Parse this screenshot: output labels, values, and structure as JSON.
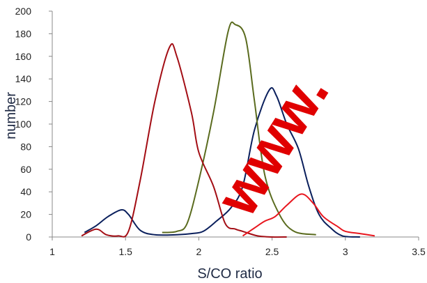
{
  "watermark_text": "www.",
  "chart_data": {
    "type": "line",
    "title": "",
    "xlabel": "S/CO ratio",
    "ylabel": "number",
    "xlim": [
      1,
      3.5
    ],
    "ylim": [
      0,
      200
    ],
    "xticks": [
      1,
      1.5,
      2,
      2.5,
      3,
      3.5
    ],
    "yticks": [
      0,
      20,
      40,
      60,
      80,
      100,
      120,
      140,
      160,
      180,
      200
    ],
    "grid": false,
    "legend": "none",
    "series": [
      {
        "color": "#0a1f5c",
        "points": [
          [
            1.22,
            4
          ],
          [
            1.3,
            10
          ],
          [
            1.38,
            18
          ],
          [
            1.47,
            24
          ],
          [
            1.52,
            20
          ],
          [
            1.6,
            6
          ],
          [
            1.7,
            2
          ],
          [
            1.85,
            2
          ],
          [
            1.95,
            3
          ],
          [
            2.03,
            5
          ],
          [
            2.12,
            14
          ],
          [
            2.22,
            26
          ],
          [
            2.3,
            45
          ],
          [
            2.38,
            95
          ],
          [
            2.48,
            130
          ],
          [
            2.53,
            125
          ],
          [
            2.6,
            100
          ],
          [
            2.68,
            78
          ],
          [
            2.75,
            45
          ],
          [
            2.82,
            20
          ],
          [
            2.9,
            8
          ],
          [
            2.98,
            1
          ],
          [
            3.1,
            0
          ]
        ]
      },
      {
        "color": "#5a6b1e",
        "points": [
          [
            1.75,
            4
          ],
          [
            1.85,
            5
          ],
          [
            1.92,
            12
          ],
          [
            2.0,
            50
          ],
          [
            2.1,
            110
          ],
          [
            2.2,
            182
          ],
          [
            2.25,
            188
          ],
          [
            2.32,
            176
          ],
          [
            2.38,
            120
          ],
          [
            2.45,
            55
          ],
          [
            2.55,
            20
          ],
          [
            2.65,
            5
          ],
          [
            2.8,
            2
          ]
        ]
      },
      {
        "color": "#a30d14",
        "points": [
          [
            1.2,
            1
          ],
          [
            1.3,
            7
          ],
          [
            1.37,
            2
          ],
          [
            1.45,
            1
          ],
          [
            1.52,
            5
          ],
          [
            1.6,
            50
          ],
          [
            1.7,
            120
          ],
          [
            1.8,
            168
          ],
          [
            1.85,
            160
          ],
          [
            1.95,
            110
          ],
          [
            2.0,
            75
          ],
          [
            2.1,
            45
          ],
          [
            2.18,
            12
          ],
          [
            2.25,
            7
          ],
          [
            2.3,
            5
          ],
          [
            2.4,
            1
          ],
          [
            2.5,
            0
          ],
          [
            2.6,
            0
          ]
        ]
      },
      {
        "color": "#e8161e",
        "points": [
          [
            2.3,
            1
          ],
          [
            2.38,
            8
          ],
          [
            2.45,
            14
          ],
          [
            2.52,
            18
          ],
          [
            2.6,
            28
          ],
          [
            2.7,
            38
          ],
          [
            2.78,
            30
          ],
          [
            2.85,
            18
          ],
          [
            2.95,
            9
          ],
          [
            3.0,
            5
          ],
          [
            3.1,
            3
          ],
          [
            3.2,
            1
          ]
        ]
      }
    ]
  }
}
